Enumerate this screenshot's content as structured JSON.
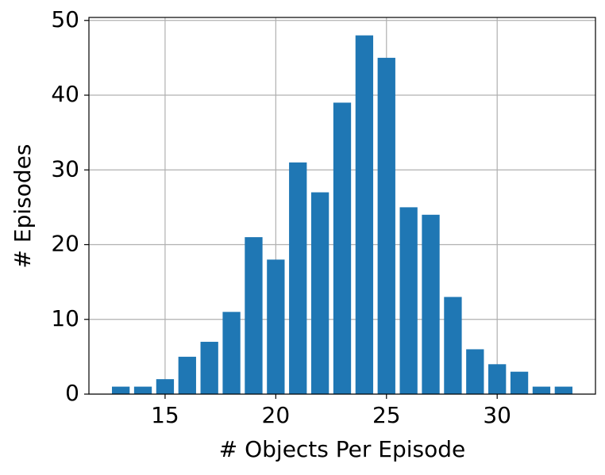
{
  "chart_data": {
    "type": "bar",
    "x": [
      13,
      14,
      15,
      16,
      17,
      18,
      19,
      20,
      21,
      22,
      23,
      24,
      25,
      26,
      27,
      28,
      29,
      30,
      31,
      32,
      33
    ],
    "values": [
      1,
      1,
      2,
      5,
      7,
      11,
      21,
      18,
      31,
      27,
      39,
      48,
      45,
      25,
      24,
      13,
      6,
      4,
      3,
      1,
      1
    ],
    "color": "#1f77b4",
    "xlabel": "# Objects Per Episode",
    "ylabel": "# Episodes",
    "xlim": [
      11.56,
      34.44
    ],
    "xticks": [
      15,
      20,
      25,
      30
    ],
    "ylim": [
      0,
      50.4
    ],
    "yticks": [
      0,
      10,
      20,
      30,
      40,
      50
    ],
    "grid": true
  }
}
